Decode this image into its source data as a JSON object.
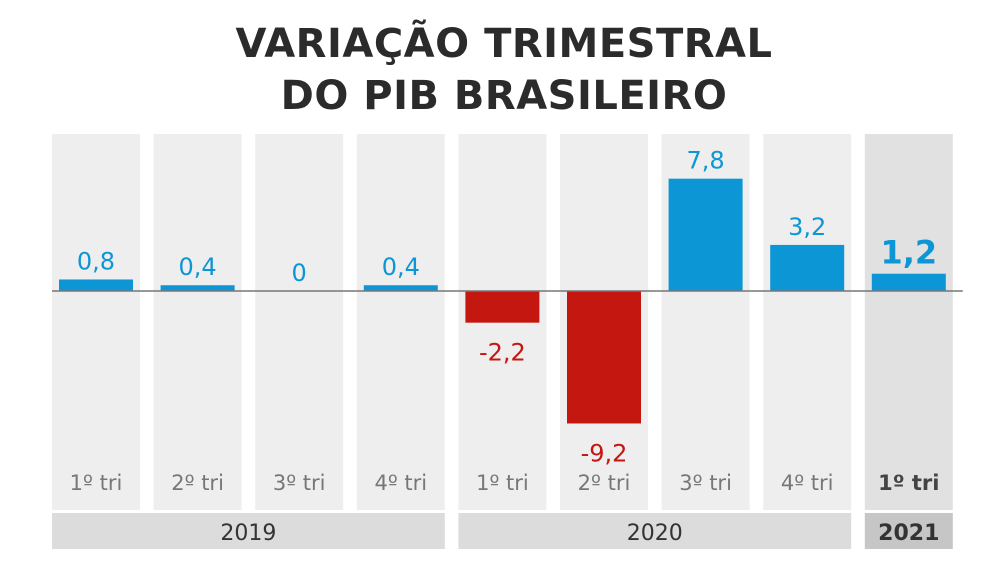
{
  "title": {
    "line1": "VARIAÇÃO TRIMESTRAL",
    "line2": "DO PIB BRASILEIRO"
  },
  "colors": {
    "positive": "#0d96d5",
    "negative": "#c4170f",
    "column_bg": "#eeeeee",
    "highlight_bg": "#e1e1e1",
    "year_bg": "#dcdcdc",
    "highlight_year_bg": "#c6c6c6",
    "quarter_text": "#777777",
    "highlight_text": "#444444",
    "zero_line": "#777777"
  },
  "chart_data": {
    "type": "bar",
    "title": "VARIAÇÃO TRIMESTRAL DO PIB BRASILEIRO",
    "categories": [
      "1º tri",
      "2º tri",
      "3º tri",
      "4º tri",
      "1º tri",
      "2º tri",
      "3º tri",
      "4º tri",
      "1º tri"
    ],
    "values": [
      0.8,
      0.4,
      0,
      0.4,
      -2.2,
      -9.2,
      7.8,
      3.2,
      1.2
    ],
    "value_labels": [
      "0,8",
      "0,4",
      "0",
      "0,4",
      "-2,2",
      "-9,2",
      "7,8",
      "3,2",
      "1,2"
    ],
    "groups": [
      {
        "year": "2019",
        "count": 4
      },
      {
        "year": "2020",
        "count": 4
      },
      {
        "year": "2021",
        "count": 1
      }
    ],
    "highlight_index": 8,
    "xlabel": "",
    "ylabel": "",
    "ylim": [
      -9.2,
      7.8
    ],
    "grid": false,
    "legend": "none"
  }
}
